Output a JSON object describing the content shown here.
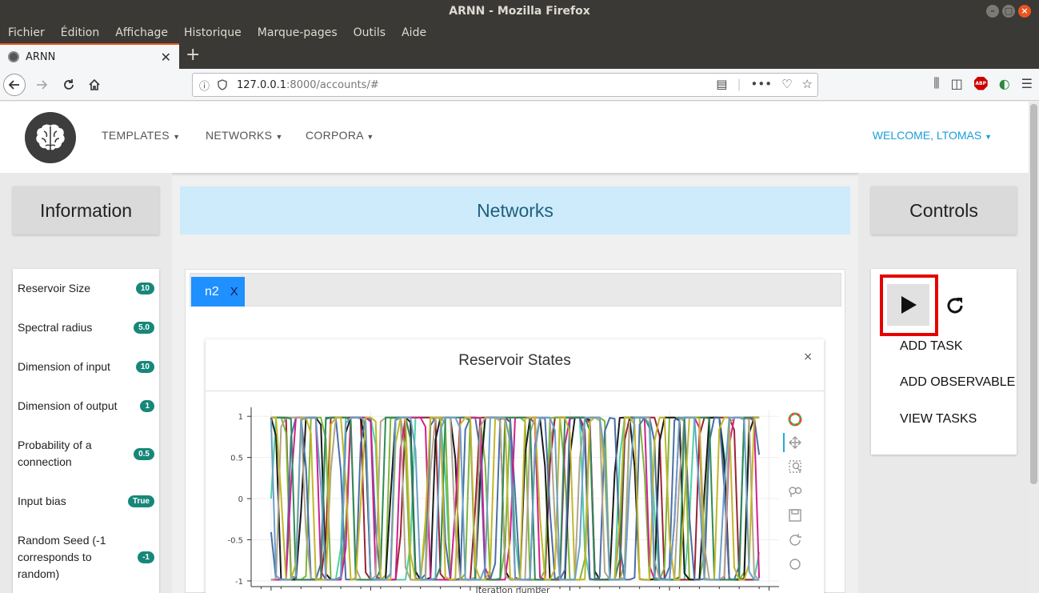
{
  "window": {
    "title": "ARNN - Mozilla Firefox"
  },
  "menu": [
    "Fichier",
    "Édition",
    "Affichage",
    "Historique",
    "Marque-pages",
    "Outils",
    "Aide"
  ],
  "tab": {
    "title": "ARNN",
    "new_tab": "+"
  },
  "address": {
    "host": "127.0.0.1",
    "rest": ":8000/accounts/#"
  },
  "header": {
    "nav": [
      "TEMPLATES",
      "NETWORKS",
      "CORPORA"
    ],
    "welcome": "WELCOME, LTOMAS"
  },
  "info": {
    "title": "Information",
    "rows": [
      {
        "label": "Reservoir Size",
        "value": "10"
      },
      {
        "label": "Spectral radius",
        "value": "5.0"
      },
      {
        "label": "Dimension of input",
        "value": "10"
      },
      {
        "label": "Dimension of output",
        "value": "1"
      },
      {
        "label": "Probability of a connection",
        "value": "0.5"
      },
      {
        "label": "Input bias",
        "value": "True"
      },
      {
        "label": "Random Seed (-1 corresponds to random)",
        "value": "-1"
      }
    ]
  },
  "networks": {
    "title": "Networks",
    "tab_label": "n2",
    "tab_close": "X",
    "plot_title": "Reservoir States",
    "plot_close": "×",
    "xlabel": "Iteration number"
  },
  "controls": {
    "title": "Controls",
    "links": [
      "ADD TASK",
      "ADD OBSERVABLE",
      "VIEW TASKS"
    ]
  },
  "chart_data": {
    "type": "line",
    "title": "Reservoir States",
    "xlabel": "Iteration number",
    "ylabel": "",
    "xlim": [
      -4,
      102
    ],
    "ylim": [
      -1.03,
      1.07
    ],
    "xticks": [
      0,
      20,
      40,
      60,
      80,
      100
    ],
    "yticks": [
      1,
      0.5,
      0,
      -0.5,
      -1
    ],
    "ytick_labels": [
      "1",
      "0.5",
      "0",
      "-0.5",
      "-1"
    ],
    "n_points": 99,
    "series": [
      {
        "color": "#4fd1a5",
        "period": 14,
        "phase": 0.0,
        "sharp": 9
      },
      {
        "color": "#9b2335",
        "period": 15,
        "phase": 1.7,
        "sharp": 10
      },
      {
        "color": "#7fb53a",
        "period": 8,
        "phase": 0.6,
        "sharp": 6
      },
      {
        "color": "#1a1a1a",
        "period": 9,
        "phase": 2.2,
        "sharp": 5
      },
      {
        "color": "#4a6fa5",
        "period": 7,
        "phase": 3.1,
        "sharp": 4
      },
      {
        "color": "#d02090",
        "period": 11,
        "phase": 4.0,
        "sharp": 7
      },
      {
        "color": "#b0a58e",
        "period": 10,
        "phase": 5.2,
        "sharp": 6
      },
      {
        "color": "#2e8b57",
        "period": 12,
        "phase": 0.9,
        "sharp": 12
      },
      {
        "color": "#c2b62a",
        "period": 6.5,
        "phase": 1.3,
        "sharp": 5
      },
      {
        "color": "#6aa0c8",
        "period": 9.5,
        "phase": 2.8,
        "sharp": 6
      }
    ]
  }
}
